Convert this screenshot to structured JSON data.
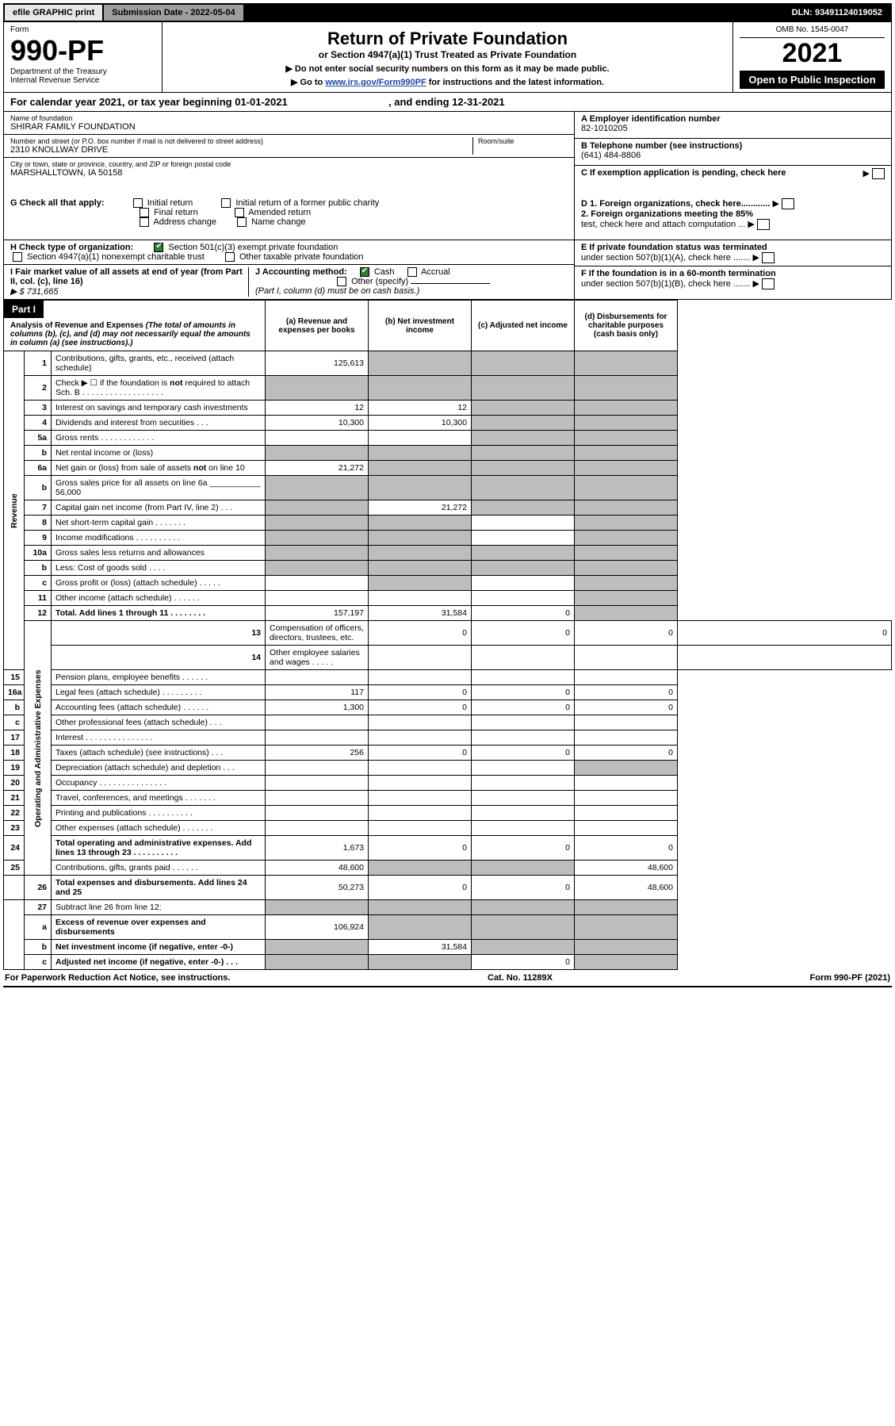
{
  "topbar": {
    "efile": "efile GRAPHIC print",
    "submission_label": "Submission Date - 2022-05-04",
    "dln": "DLN: 93491124019052"
  },
  "header": {
    "form_word": "Form",
    "form_number": "990-PF",
    "dept1": "Department of the Treasury",
    "dept2": "Internal Revenue Service",
    "title": "Return of Private Foundation",
    "subtitle": "or Section 4947(a)(1) Trust Treated as Private Foundation",
    "note1": "▶ Do not enter social security numbers on this form as it may be made public.",
    "note2_pre": "▶ Go to ",
    "note2_link": "www.irs.gov/Form990PF",
    "note2_post": " for instructions and the latest information.",
    "omb": "OMB No. 1545-0047",
    "year": "2021",
    "open": "Open to Public Inspection"
  },
  "calyear": {
    "text_a": "For calendar year 2021, or tax year beginning 01-01-2021",
    "text_b": ", and ending 12-31-2021"
  },
  "id": {
    "name_label": "Name of foundation",
    "name": "SHIRAR FAMILY FOUNDATION",
    "addr_label": "Number and street (or P.O. box number if mail is not delivered to street address)",
    "addr": "2310 KNOLLWAY DRIVE",
    "room_label": "Room/suite",
    "city_label": "City or town, state or province, country, and ZIP or foreign postal code",
    "city": "MARSHALLTOWN, IA  50158",
    "A_lbl": "A Employer identification number",
    "A_val": "82-1010205",
    "B_lbl": "B Telephone number (see instructions)",
    "B_val": "(641) 484-8806",
    "C_lbl": "C If exemption application is pending, check here"
  },
  "G": {
    "lead": "G Check all that apply:",
    "initial": "Initial return",
    "initial_former": "Initial return of a former public charity",
    "final": "Final return",
    "amended": "Amended return",
    "addr": "Address change",
    "name": "Name change"
  },
  "H": {
    "lead": "H Check type of organization:",
    "s501": "Section 501(c)(3) exempt private foundation",
    "s4947": "Section 4947(a)(1) nonexempt charitable trust",
    "other_tax": "Other taxable private foundation"
  },
  "I": {
    "lead": "I Fair market value of all assets at end of year (from Part II, col. (c), line 16)",
    "val": "▶ $  731,665"
  },
  "J": {
    "lead": "J Accounting method:",
    "cash": "Cash",
    "accrual": "Accrual",
    "other": "Other (specify)",
    "note": "(Part I, column (d) must be on cash basis.)"
  },
  "D": {
    "d1": "D 1. Foreign organizations, check here............",
    "d2a": "2. Foreign organizations meeting the 85%",
    "d2b": "test, check here and attach computation ..."
  },
  "E": {
    "e1": "E  If private foundation status was terminated",
    "e2": "under section 507(b)(1)(A), check here ......."
  },
  "F": {
    "f1": "F  If the foundation is in a 60-month termination",
    "f2": "under section 507(b)(1)(B), check here ......."
  },
  "part1": {
    "label": "Part I",
    "head_title": "Analysis of Revenue and Expenses",
    "head_note": "(The total of amounts in columns (b), (c), and (d) may not necessarily equal the amounts in column (a) (see instructions).)",
    "colA": "(a)  Revenue and expenses per books",
    "colB": "(b)  Net investment income",
    "colC": "(c)  Adjusted net income",
    "colD": "(d)  Disbursements for charitable purposes (cash basis only)"
  },
  "side": {
    "revenue": "Revenue",
    "opex": "Operating and Administrative Expenses"
  },
  "rows": {
    "r1": {
      "n": "1",
      "d": "Contributions, gifts, grants, etc., received (attach schedule)",
      "a": "125,613"
    },
    "r2": {
      "n": "2",
      "d": "Check ▶ ☐ if the foundation is not required to attach Sch. B   . . . . . . . . . . . . . . . . . ."
    },
    "r3": {
      "n": "3",
      "d": "Interest on savings and temporary cash investments",
      "a": "12",
      "b": "12"
    },
    "r4": {
      "n": "4",
      "d": "Dividends and interest from securities   .  .  .",
      "a": "10,300",
      "b": "10,300"
    },
    "r5a": {
      "n": "5a",
      "d": "Gross rents   .  .  .  .  .  .  .  .  .  .  .  ."
    },
    "r5b": {
      "n": "b",
      "d": "Net rental income or (loss)"
    },
    "r6a": {
      "n": "6a",
      "d": "Net gain or (loss) from sale of assets not on line 10",
      "a": "21,272"
    },
    "r6b": {
      "n": "b",
      "d": "Gross sales price for all assets on line 6a",
      "v": "56,000"
    },
    "r7": {
      "n": "7",
      "d": "Capital gain net income (from Part IV, line 2)   .  .  .",
      "b": "21,272"
    },
    "r8": {
      "n": "8",
      "d": "Net short-term capital gain   .  .  .  .  .  .  ."
    },
    "r9": {
      "n": "9",
      "d": "Income modifications  .  .  .  .  .  .  .  .  .  ."
    },
    "r10a": {
      "n": "10a",
      "d": "Gross sales less returns and allowances"
    },
    "r10b": {
      "n": "b",
      "d": "Less: Cost of goods sold   .  .  .  ."
    },
    "r10c": {
      "n": "c",
      "d": "Gross profit or (loss) (attach schedule)   .  .  .  .  ."
    },
    "r11": {
      "n": "11",
      "d": "Other income (attach schedule)   .  .  .  .  .  ."
    },
    "r12": {
      "n": "12",
      "d": "Total. Add lines 1 through 11   .  .  .  .  .  .  .  .",
      "a": "157,197",
      "b": "31,584",
      "c": "0"
    },
    "r13": {
      "n": "13",
      "d": "Compensation of officers, directors, trustees, etc.",
      "a": "0",
      "b": "0",
      "c": "0",
      "dd": "0"
    },
    "r14": {
      "n": "14",
      "d": "Other employee salaries and wages   .  .  .  .  ."
    },
    "r15": {
      "n": "15",
      "d": "Pension plans, employee benefits  .  .  .  .  .  ."
    },
    "r16a": {
      "n": "16a",
      "d": "Legal fees (attach schedule) .  .  .  .  .  .  .  .  .",
      "a": "117",
      "b": "0",
      "c": "0",
      "dd": "0"
    },
    "r16b": {
      "n": "b",
      "d": "Accounting fees (attach schedule)  .  .  .  .  .  .",
      "a": "1,300",
      "b": "0",
      "c": "0",
      "dd": "0"
    },
    "r16c": {
      "n": "c",
      "d": "Other professional fees (attach schedule)   .  .  ."
    },
    "r17": {
      "n": "17",
      "d": "Interest  .  .  .  .  .  .  .  .  .  .  .  .  .  .  ."
    },
    "r18": {
      "n": "18",
      "d": "Taxes (attach schedule) (see instructions)   .  .  .",
      "a": "256",
      "b": "0",
      "c": "0",
      "dd": "0"
    },
    "r19": {
      "n": "19",
      "d": "Depreciation (attach schedule) and depletion   .  .  ."
    },
    "r20": {
      "n": "20",
      "d": "Occupancy .  .  .  .  .  .  .  .  .  .  .  .  .  .  ."
    },
    "r21": {
      "n": "21",
      "d": "Travel, conferences, and meetings .  .  .  .  .  .  ."
    },
    "r22": {
      "n": "22",
      "d": "Printing and publications  .  .  .  .  .  .  .  .  .  ."
    },
    "r23": {
      "n": "23",
      "d": "Other expenses (attach schedule)  .  .  .  .  .  .  ."
    },
    "r24": {
      "n": "24",
      "d": "Total operating and administrative expenses. Add lines 13 through 23   .  .  .  .  .  .  .  .  .  .",
      "a": "1,673",
      "b": "0",
      "c": "0",
      "dd": "0"
    },
    "r25": {
      "n": "25",
      "d": "Contributions, gifts, grants paid   .  .  .  .  .  .",
      "a": "48,600",
      "dd": "48,600"
    },
    "r26": {
      "n": "26",
      "d": "Total expenses and disbursements. Add lines 24 and 25",
      "a": "50,273",
      "b": "0",
      "c": "0",
      "dd": "48,600"
    },
    "r27": {
      "n": "27",
      "d": "Subtract line 26 from line 12:"
    },
    "r27a": {
      "n": "a",
      "d": "Excess of revenue over expenses and disbursements",
      "a": "106,924"
    },
    "r27b": {
      "n": "b",
      "d": "Net investment income (if negative, enter -0-)",
      "b": "31,584"
    },
    "r27c": {
      "n": "c",
      "d": "Adjusted net income (if negative, enter -0-)   .  .  .",
      "c": "0"
    }
  },
  "footer": {
    "left": "For Paperwork Reduction Act Notice, see instructions.",
    "mid": "Cat. No. 11289X",
    "right": "Form 990-PF (2021)"
  },
  "colors": {
    "gray_cell": "#bdbdbd",
    "link": "#1a4aa8",
    "check_green": "#2e7d32"
  }
}
